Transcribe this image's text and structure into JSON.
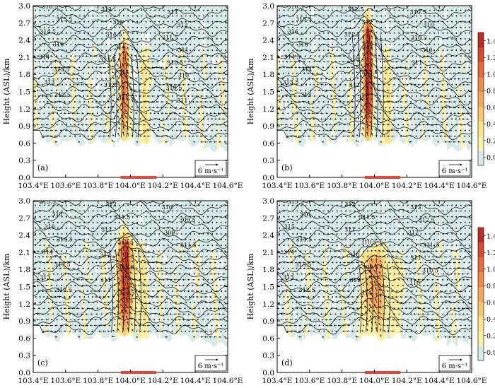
{
  "figure": {
    "ylabel": "Height (ASL)/km",
    "vector_key_label": "6 m·s⁻¹"
  },
  "panels": [
    {
      "label": "(a)",
      "peak": 1.1,
      "center": 103.96,
      "width": 0.025,
      "top": 2.25
    },
    {
      "label": "(b)",
      "peak": 1.45,
      "center": 103.96,
      "width": 0.028,
      "top": 2.6
    },
    {
      "label": "(c)",
      "peak": 1.3,
      "center": 103.97,
      "width": 0.045,
      "top": 2.25
    },
    {
      "label": "(d)",
      "peak": 0.8,
      "center": 104.0,
      "width": 0.06,
      "top": 2.0
    }
  ],
  "chart_data": {
    "type": "heatmap",
    "description_of_axes": "longitude-height cross-sections",
    "x_ticks": [
      "103.4°E",
      "103.6°E",
      "103.8°E",
      "104.0°E",
      "104.2°E",
      "104.4°E",
      "104.6°E"
    ],
    "x_values": [
      103.4,
      103.6,
      103.8,
      104.0,
      104.2,
      104.4,
      104.6
    ],
    "xlim": [
      103.4,
      104.6
    ],
    "y_ticks": [
      "0.0",
      "0.3",
      "0.6",
      "0.9",
      "1.2",
      "1.5",
      "1.8",
      "2.1",
      "2.4",
      "2.7",
      "3.0"
    ],
    "y_values": [
      0.0,
      0.3,
      0.6,
      0.9,
      1.2,
      1.5,
      1.8,
      2.1,
      2.4,
      2.7,
      3.0
    ],
    "ylim": [
      0.0,
      3.0
    ],
    "ylabel": "Height (ASL)/km",
    "red_bar_range": [
      103.94,
      104.16
    ],
    "colorbar": {
      "ticks": [
        "0.0",
        "0.2",
        "0.4",
        "0.6",
        "0.8",
        "1.0",
        "1.2",
        "1.4"
      ],
      "values": [
        0.0,
        0.2,
        0.4,
        0.6,
        0.8,
        1.0,
        1.2,
        1.4
      ],
      "range": [
        -0.1,
        1.5
      ],
      "colors": [
        "#d6eaea",
        "#fcf2a9",
        "#fce38c",
        "#f9c76e",
        "#f5a85b",
        "#ef8a4a",
        "#e56a3b",
        "#d44a2e",
        "#b82e25"
      ]
    },
    "contour_labels": {
      "a": [
        "316.5",
        "315.5",
        "314.5",
        "316",
        "314",
        "313.5",
        "313",
        "312.5",
        "312",
        "315",
        "314.5",
        "314",
        "313.5",
        "313",
        "312.5",
        "311.5",
        "311",
        "312",
        "311.5",
        "311",
        "310.5",
        "310",
        "310.5",
        "311"
      ],
      "b": [
        "316.5",
        "315.5",
        "316",
        "315",
        "314.5",
        "314",
        "313.5",
        "313",
        "312.5",
        "312",
        "311.5",
        "311",
        "314",
        "313.5",
        "312",
        "311",
        "310.5",
        "310",
        "310.5",
        "310",
        "311"
      ],
      "c": [
        "315.5",
        "315",
        "316",
        "314.5",
        "314",
        "313.5",
        "313",
        "312.5",
        "312",
        "311.5",
        "311",
        "312.5",
        "312",
        "311.5",
        "311",
        "310.5",
        "310",
        "309.5",
        "309",
        "311.5"
      ],
      "d": [
        "315.5",
        "316",
        "315",
        "314.5",
        "314",
        "313.5",
        "313",
        "312.5",
        "312",
        "311.5",
        "311",
        "310.5",
        "310",
        "309.5",
        "309",
        "314",
        "313",
        "312.5",
        "312",
        "311.5",
        "311",
        "310.5",
        "310"
      ]
    }
  }
}
